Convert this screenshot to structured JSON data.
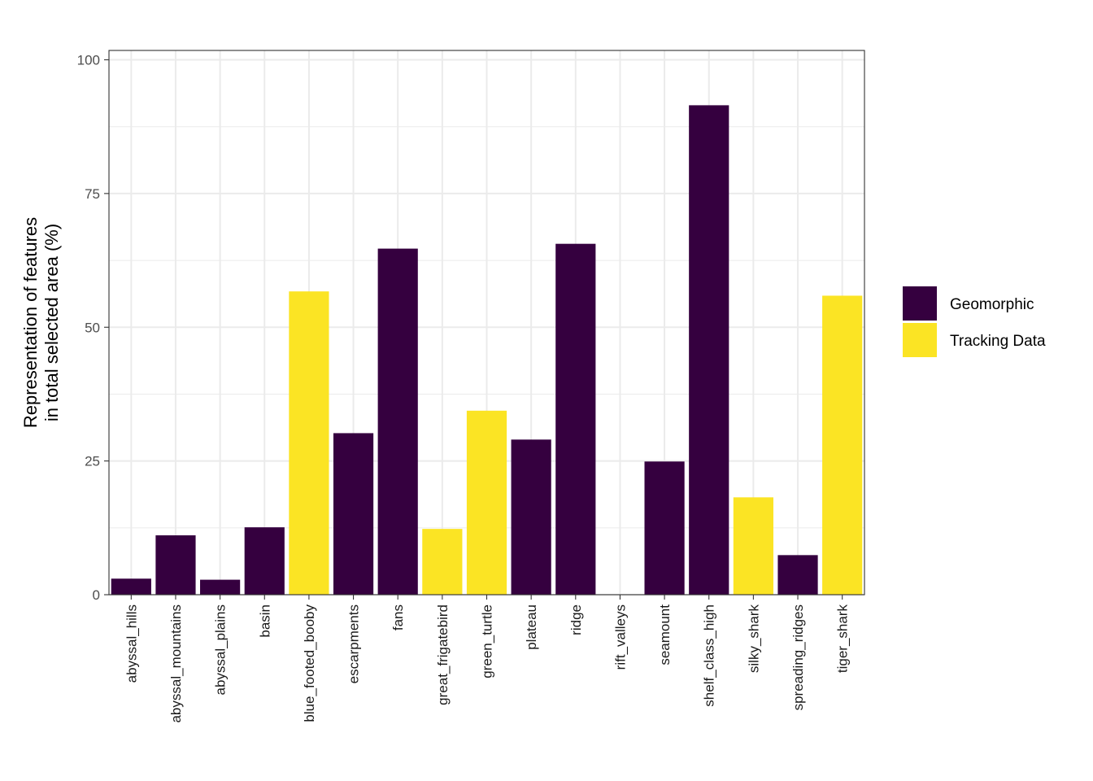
{
  "chart_data": {
    "type": "bar",
    "title": "",
    "xlabel": "",
    "ylabel": [
      "Representation of features",
      "in total selected area (%)"
    ],
    "ylim": [
      0,
      100
    ],
    "yticks": [
      0,
      25,
      50,
      75,
      100
    ],
    "grid": true,
    "legend_position": "right",
    "colors": {
      "Geomorphic": "#35003f",
      "Tracking Data": "#fbe424"
    },
    "legend": [
      "Geomorphic",
      "Tracking Data"
    ],
    "categories": [
      "abyssal_hills",
      "abyssal_mountains",
      "abyssal_plains",
      "basin",
      "blue_footed_booby",
      "escarpments",
      "fans",
      "great_frigatebird",
      "green_turtle",
      "plateau",
      "ridge",
      "rift_valleys",
      "seamount",
      "shelf_class_high",
      "silky_shark",
      "spreading_ridges",
      "tiger_shark"
    ],
    "values": [
      3.0,
      11.1,
      2.8,
      12.6,
      56.7,
      30.2,
      64.7,
      12.3,
      34.4,
      29.0,
      65.6,
      0.0,
      24.9,
      91.5,
      18.2,
      7.4,
      55.9
    ],
    "groups": [
      "Geomorphic",
      "Geomorphic",
      "Geomorphic",
      "Geomorphic",
      "Tracking Data",
      "Geomorphic",
      "Geomorphic",
      "Tracking Data",
      "Tracking Data",
      "Geomorphic",
      "Geomorphic",
      "Geomorphic",
      "Geomorphic",
      "Geomorphic",
      "Tracking Data",
      "Geomorphic",
      "Tracking Data"
    ]
  }
}
